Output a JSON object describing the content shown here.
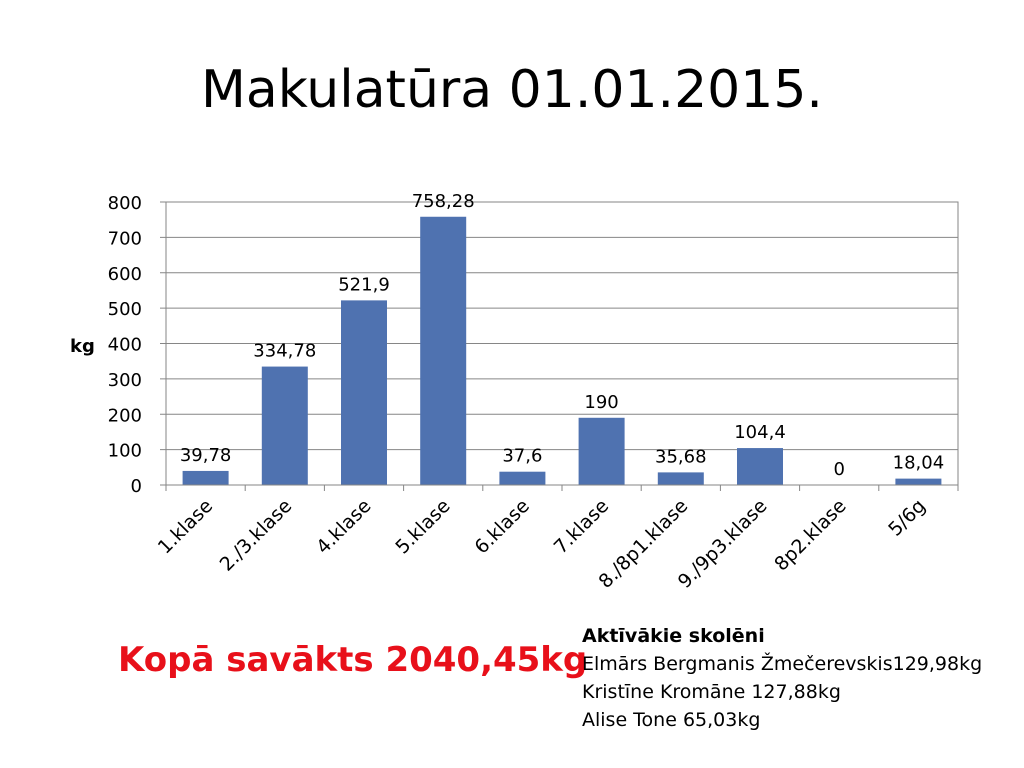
{
  "slide": {
    "title": "Makulatūra 01.01.2015."
  },
  "summary": {
    "total_label": "Kopā savākts 2040,45kg",
    "students_heading": "Aktīvākie skolēni",
    "students": [
      "Elmārs Bergmanis Žmečerevskis129,98kg",
      "Kristīne Kromāne 127,88kg",
      "Alise Tone 65,03kg"
    ]
  },
  "chart_data": {
    "type": "bar",
    "title": "",
    "xlabel": "",
    "ylabel": "kg",
    "categories": [
      "1.klase",
      "2./3.klase",
      "4.klase",
      "5.klase",
      "6.klase",
      "7.klase",
      "8./8p1.klase",
      "9./9p3.klase",
      "8p2.klase",
      "5/6g"
    ],
    "values": [
      39.78,
      334.78,
      521.9,
      758.28,
      37.6,
      190,
      35.68,
      104.4,
      0,
      18.04
    ],
    "data_labels": [
      "39,78",
      "334,78",
      "521,9",
      "758,28",
      "37,6",
      "190",
      "35,68",
      "104,4",
      "0",
      "18,04"
    ],
    "ylim": [
      0,
      800
    ],
    "yticks": [
      0,
      100,
      200,
      300,
      400,
      500,
      600,
      700,
      800
    ],
    "grid": true,
    "bar_color": "#4f72b0",
    "legend": false
  }
}
